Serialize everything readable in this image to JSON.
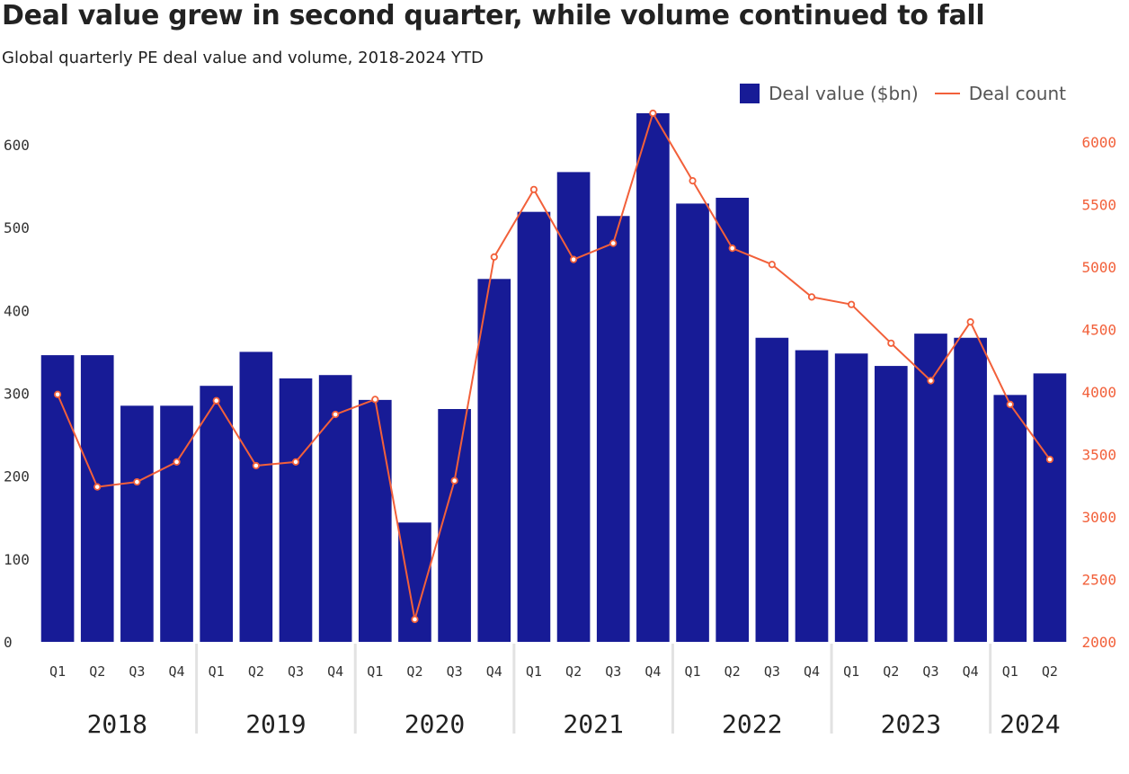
{
  "chart_data": {
    "type": "bar",
    "title": "Deal value grew in second quarter, while volume continued to fall",
    "subtitle": "Global quarterly PE deal value and volume, 2018-2024 YTD",
    "quarter_labels": [
      "Q1",
      "Q2",
      "Q3",
      "Q4",
      "Q1",
      "Q2",
      "Q3",
      "Q4",
      "Q1",
      "Q2",
      "Q3",
      "Q4",
      "Q1",
      "Q2",
      "Q3",
      "Q4",
      "Q1",
      "Q2",
      "Q3",
      "Q4",
      "Q1",
      "Q2",
      "Q3",
      "Q4",
      "Q1",
      "Q2"
    ],
    "years": [
      {
        "label": "2018",
        "quarters": 4
      },
      {
        "label": "2019",
        "quarters": 4
      },
      {
        "label": "2020",
        "quarters": 4
      },
      {
        "label": "2021",
        "quarters": 4
      },
      {
        "label": "2022",
        "quarters": 4
      },
      {
        "label": "2023",
        "quarters": 4
      },
      {
        "label": "2024",
        "quarters": 2
      }
    ],
    "series": [
      {
        "name": "Deal value ($bn)",
        "type": "bar",
        "axis": "left",
        "color": "#171b96",
        "values": [
          346,
          346,
          285,
          285,
          309,
          350,
          318,
          322,
          292,
          144,
          281,
          438,
          519,
          567,
          514,
          638,
          529,
          536,
          367,
          352,
          348,
          333,
          372,
          367,
          298,
          324
        ]
      },
      {
        "name": "Deal count",
        "type": "line",
        "axis": "right",
        "color": "#f2603a",
        "values": [
          3980,
          3240,
          3280,
          3440,
          3930,
          3410,
          3440,
          3820,
          3940,
          2180,
          3290,
          5080,
          5620,
          5060,
          5190,
          6230,
          5690,
          5150,
          5020,
          4760,
          4700,
          4390,
          4090,
          4560,
          3900,
          3460
        ]
      }
    ],
    "y_left": {
      "min": 0,
      "max": 600,
      "ticks": [
        0,
        100,
        200,
        300,
        400,
        500,
        600
      ]
    },
    "y_right": {
      "min": 2000,
      "max": 6000,
      "ticks": [
        2000,
        2500,
        3000,
        3500,
        4000,
        4500,
        5000,
        5500,
        6000
      ]
    },
    "grid": false,
    "legend_position": "top-right"
  }
}
